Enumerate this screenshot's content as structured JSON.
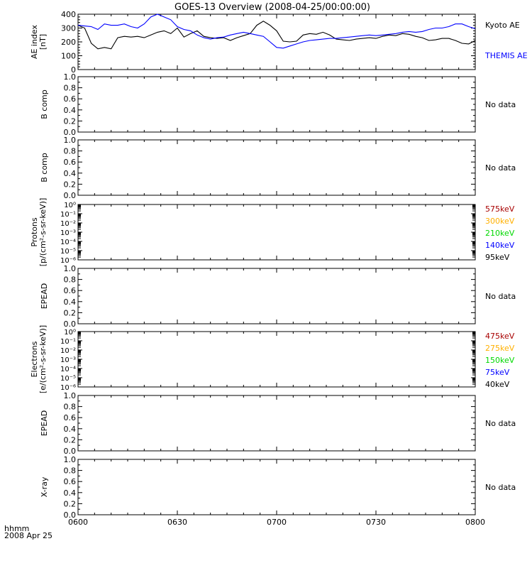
{
  "title": "GOES-13 Overview (2008-04-25/00:00:00)",
  "time_axis": {
    "unit_label": "hhmm",
    "date_label": "2008 Apr 25",
    "ticks": [
      "0600",
      "0630",
      "0700",
      "0730",
      "0800"
    ],
    "range": [
      "06:00",
      "08:00"
    ]
  },
  "no_data_label": "No data",
  "colors": {
    "kyoto": "#000000",
    "themis": "#0000ff",
    "575": "#a80000",
    "300": "#ffb000",
    "210": "#00d800",
    "140": "#0000ff",
    "95": "#000000"
  },
  "chart_data": [
    {
      "type": "line",
      "panel": "ae",
      "ylabel": [
        "AE index",
        "[nT]"
      ],
      "ylim": [
        0,
        400
      ],
      "yticks": [
        "0",
        "100",
        "200",
        "300",
        "400"
      ],
      "x_minutes": [
        0,
        2,
        4,
        6,
        8,
        10,
        12,
        14,
        16,
        18,
        20,
        22,
        24,
        26,
        28,
        30,
        32,
        34,
        36,
        38,
        40,
        42,
        44,
        46,
        48,
        50,
        52,
        54,
        56,
        58,
        60,
        62,
        64,
        66,
        68,
        70,
        72,
        74,
        76,
        78,
        80,
        82,
        84,
        86,
        88,
        90,
        92,
        94,
        96,
        98,
        100,
        102,
        104,
        106,
        108,
        110,
        112,
        114,
        116,
        118,
        120
      ],
      "series": [
        {
          "name": "Kyoto AE",
          "color_key": "kyoto",
          "values": [
            320,
            300,
            190,
            150,
            160,
            150,
            230,
            240,
            235,
            240,
            230,
            250,
            270,
            280,
            260,
            300,
            235,
            260,
            280,
            240,
            230,
            225,
            230,
            210,
            230,
            245,
            260,
            320,
            350,
            320,
            280,
            205,
            200,
            205,
            250,
            260,
            255,
            270,
            250,
            220,
            215,
            210,
            220,
            225,
            230,
            225,
            240,
            250,
            245,
            260,
            255,
            240,
            230,
            210,
            215,
            225,
            225,
            210,
            190,
            185,
            210
          ]
        },
        {
          "name": "THEMIS AE",
          "color_key": "themis",
          "values": [
            320,
            315,
            310,
            290,
            330,
            320,
            320,
            330,
            310,
            300,
            330,
            380,
            400,
            380,
            360,
            310,
            290,
            280,
            250,
            230,
            220,
            230,
            235,
            250,
            260,
            270,
            260,
            250,
            240,
            200,
            160,
            155,
            170,
            185,
            200,
            210,
            215,
            220,
            225,
            225,
            230,
            235,
            240,
            245,
            250,
            245,
            250,
            255,
            260,
            270,
            275,
            270,
            275,
            290,
            300,
            300,
            310,
            330,
            330,
            310,
            295
          ]
        }
      ]
    },
    {
      "type": "line",
      "panel": "b1",
      "ylabel": [
        "B comp"
      ],
      "ylim": [
        0,
        1
      ],
      "yticks": [
        "0.0",
        "0.2",
        "0.4",
        "0.6",
        "0.8",
        "1.0"
      ],
      "series": []
    },
    {
      "type": "line",
      "panel": "b2",
      "ylabel": [
        "B comp"
      ],
      "ylim": [
        0,
        1
      ],
      "yticks": [
        "0.0",
        "0.2",
        "0.4",
        "0.6",
        "0.8",
        "1.0"
      ],
      "series": []
    },
    {
      "type": "line",
      "panel": "protons",
      "ylabel": [
        "Protons",
        "[p/(cm²-s-sr-keV)]"
      ],
      "yscale": "log",
      "ylim": [
        1e-06,
        1
      ],
      "yticks": [
        "10⁻⁶",
        "10⁻⁵",
        "10⁻⁴",
        "10⁻³",
        "10⁻²",
        "10⁻¹",
        "10⁰"
      ],
      "legend": [
        {
          "label": "575keV",
          "color_key": "575"
        },
        {
          "label": "300keV",
          "color_key": "300"
        },
        {
          "label": "210keV",
          "color_key": "210"
        },
        {
          "label": "140keV",
          "color_key": "140"
        },
        {
          "label": "95keV",
          "color_key": "95"
        }
      ],
      "series": []
    },
    {
      "type": "line",
      "panel": "epead1",
      "ylabel": [
        "EPEAD"
      ],
      "ylim": [
        0,
        1
      ],
      "yticks": [
        "0.0",
        "0.2",
        "0.4",
        "0.6",
        "0.8",
        "1.0"
      ],
      "series": []
    },
    {
      "type": "line",
      "panel": "electrons",
      "ylabel": [
        "Electrons",
        "[e/(cm²-s-sr-keV)]"
      ],
      "yscale": "log",
      "ylim": [
        1e-06,
        1
      ],
      "yticks": [
        "10⁻⁶",
        "10⁻⁵",
        "10⁻⁴",
        "10⁻³",
        "10⁻²",
        "10⁻¹",
        "10⁰"
      ],
      "legend": [
        {
          "label": "475keV",
          "color_key": "575"
        },
        {
          "label": "275keV",
          "color_key": "300"
        },
        {
          "label": "150keV",
          "color_key": "210"
        },
        {
          "label": "75keV",
          "color_key": "140"
        },
        {
          "label": "40keV",
          "color_key": "95"
        }
      ],
      "series": []
    },
    {
      "type": "line",
      "panel": "epead2",
      "ylabel": [
        "EPEAD"
      ],
      "ylim": [
        0,
        1
      ],
      "yticks": [
        "0.0",
        "0.2",
        "0.4",
        "0.6",
        "0.8",
        "1.0"
      ],
      "series": []
    },
    {
      "type": "line",
      "panel": "xray",
      "ylabel": [
        "X-ray"
      ],
      "ylim": [
        0,
        1
      ],
      "yticks": [
        "0.0",
        "0.2",
        "0.4",
        "0.6",
        "0.8",
        "1.0"
      ],
      "series": []
    }
  ]
}
